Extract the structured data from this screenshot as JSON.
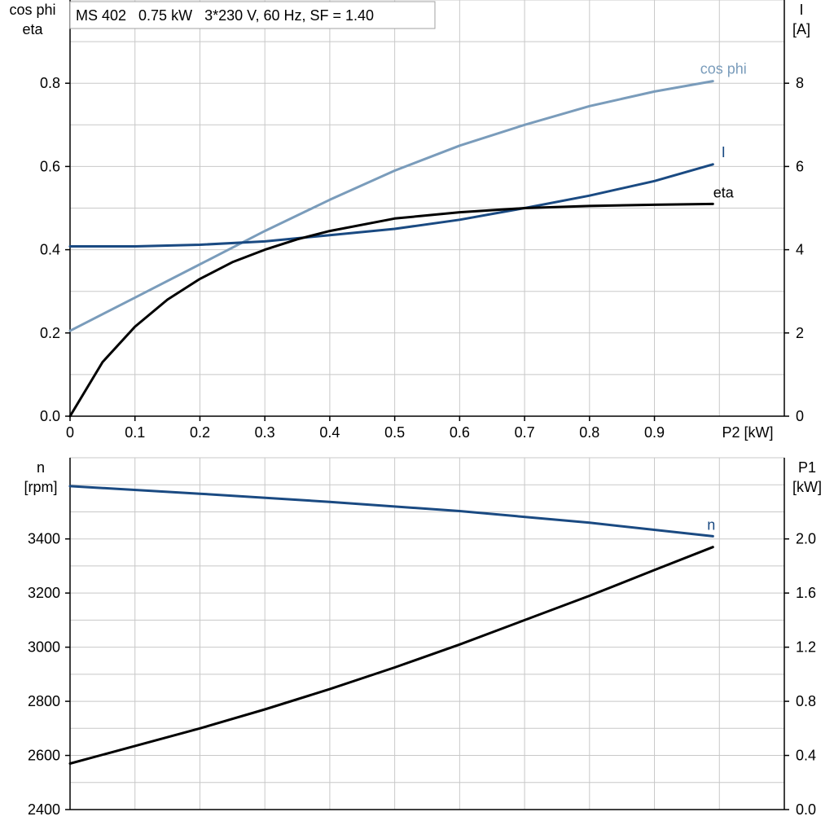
{
  "chart_data": [
    {
      "type": "line",
      "title": "MS 402   0.75 kW   3*230 V, 60 Hz, SF = 1.40",
      "xlabel": "P2 [kW]",
      "xlim": [
        0,
        1.1
      ],
      "x_ticks": [
        "0",
        "0.1",
        "0.2",
        "0.3",
        "0.4",
        "0.5",
        "0.6",
        "0.7",
        "0.8",
        "0.9"
      ],
      "y_left": {
        "label_lines": [
          "cos phi",
          "eta"
        ],
        "lim": [
          0,
          1.0
        ],
        "ticks": [
          "0.0",
          "0.2",
          "0.4",
          "0.6",
          "0.8"
        ]
      },
      "y_right": {
        "label_lines": [
          "I",
          "[A]"
        ],
        "lim": [
          0,
          10
        ],
        "ticks": [
          "0",
          "2",
          "4",
          "6",
          "8"
        ]
      },
      "grid": true,
      "series": [
        {
          "name": "cos phi",
          "axis": "left",
          "color": "#7a9cbb",
          "x": [
            0,
            0.1,
            0.2,
            0.3,
            0.4,
            0.5,
            0.6,
            0.7,
            0.8,
            0.9,
            0.99
          ],
          "y": [
            0.205,
            0.285,
            0.365,
            0.445,
            0.52,
            0.59,
            0.65,
            0.7,
            0.745,
            0.78,
            0.805
          ]
        },
        {
          "name": "I",
          "axis": "right",
          "color": "#1a4a82",
          "x": [
            0,
            0.1,
            0.2,
            0.3,
            0.4,
            0.5,
            0.6,
            0.7,
            0.8,
            0.9,
            0.99
          ],
          "y": [
            4.08,
            4.08,
            4.12,
            4.2,
            4.35,
            4.5,
            4.72,
            5.0,
            5.3,
            5.65,
            6.05
          ]
        },
        {
          "name": "eta",
          "axis": "left",
          "color": "#000000",
          "x": [
            0,
            0.05,
            0.1,
            0.15,
            0.2,
            0.25,
            0.3,
            0.35,
            0.4,
            0.5,
            0.6,
            0.7,
            0.8,
            0.9,
            0.99
          ],
          "y": [
            0.0,
            0.13,
            0.215,
            0.28,
            0.33,
            0.37,
            0.4,
            0.425,
            0.445,
            0.475,
            0.49,
            0.5,
            0.505,
            0.508,
            0.51
          ]
        }
      ]
    },
    {
      "type": "line",
      "xlim": [
        0,
        1.1
      ],
      "y_left": {
        "label_lines": [
          "n",
          "[rpm]"
        ],
        "lim": [
          2400,
          3700
        ],
        "ticks": [
          "2400",
          "2600",
          "2800",
          "3000",
          "3200",
          "3400"
        ]
      },
      "y_right": {
        "label_lines": [
          "P1",
          "[kW]"
        ],
        "lim": [
          0,
          2.6
        ],
        "ticks": [
          "0.0",
          "0.4",
          "0.8",
          "1.2",
          "1.6",
          "2.0"
        ]
      },
      "grid": true,
      "series": [
        {
          "name": "n",
          "axis": "left",
          "color": "#1a4a82",
          "x": [
            0,
            0.2,
            0.4,
            0.6,
            0.8,
            0.99
          ],
          "y": [
            3595,
            3567,
            3537,
            3503,
            3460,
            3410
          ]
        },
        {
          "axis": "right",
          "color": "#000000",
          "x": [
            0,
            0.1,
            0.2,
            0.3,
            0.4,
            0.5,
            0.6,
            0.7,
            0.8,
            0.9,
            0.99
          ],
          "y": [
            0.34,
            0.47,
            0.6,
            0.74,
            0.89,
            1.05,
            1.22,
            1.4,
            1.58,
            1.77,
            1.94
          ]
        }
      ]
    }
  ]
}
